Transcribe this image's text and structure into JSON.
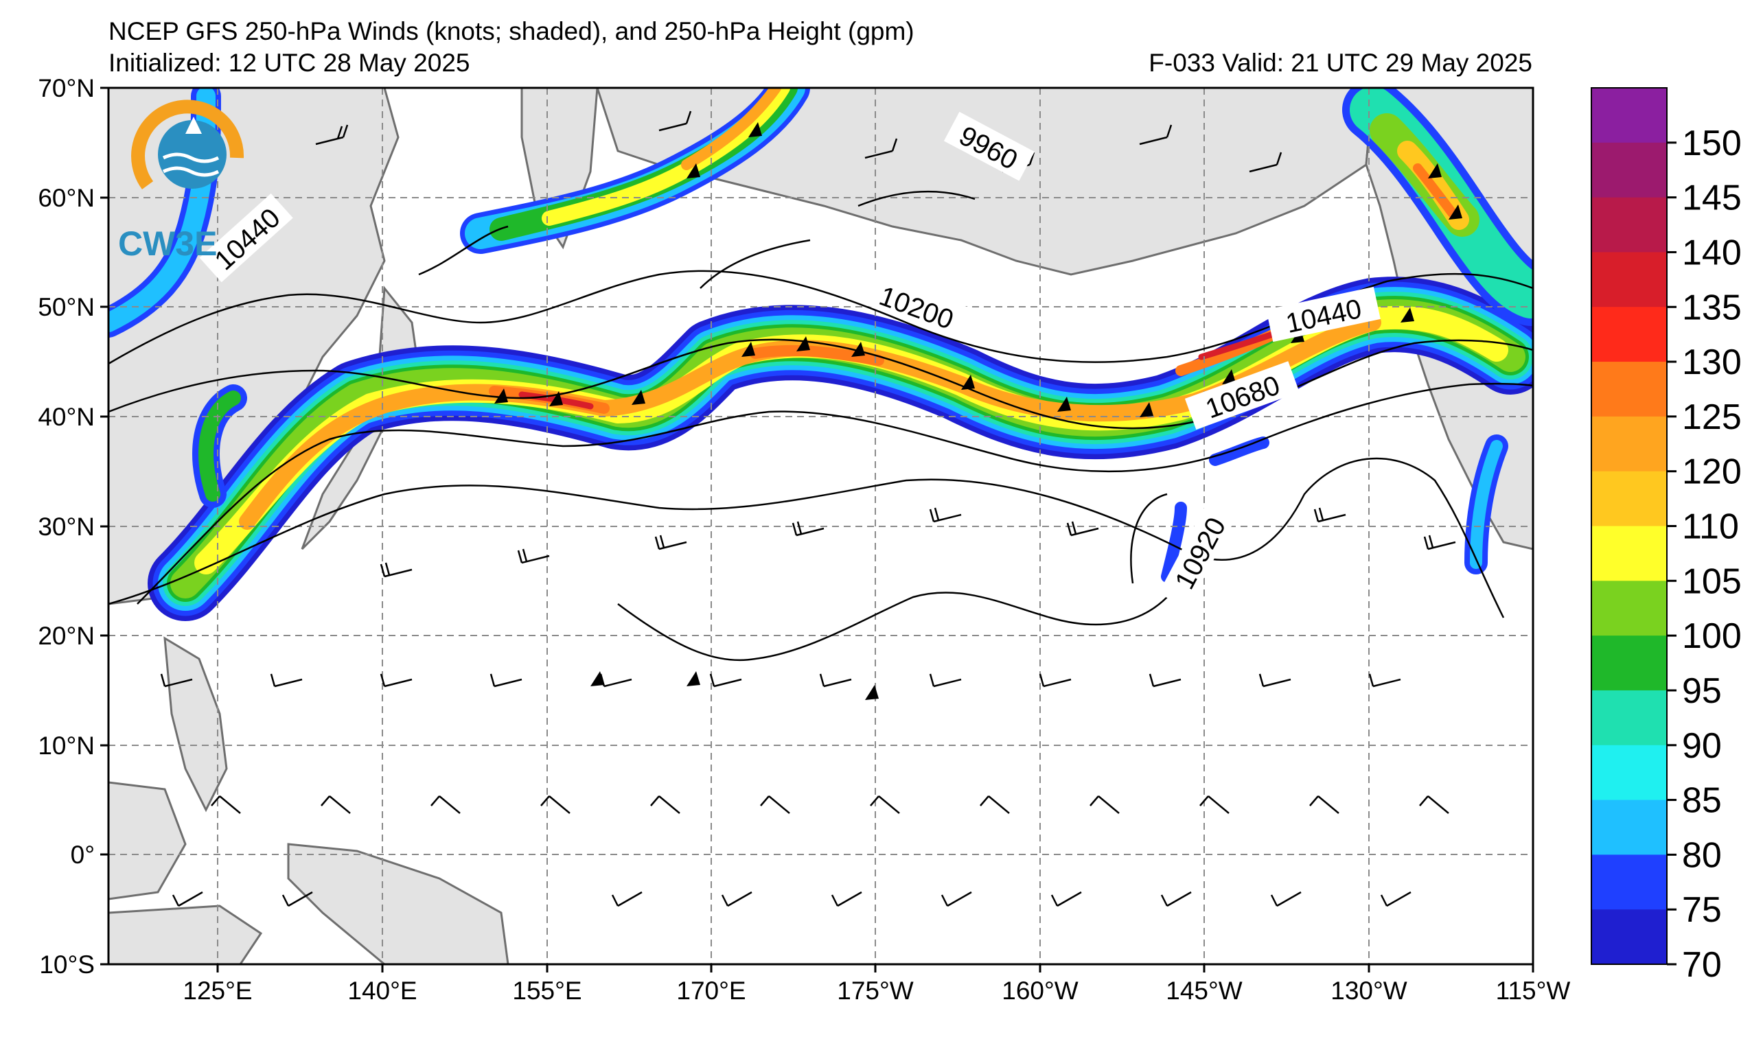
{
  "header": {
    "title": "NCEP GFS 250-hPa Winds (knots; shaded), and 250-hPa Height (gpm)",
    "initialized": "Initialized: 12 UTC 28 May 2025",
    "valid": "F-033  Valid: 21 UTC 29 May 2025"
  },
  "logo": {
    "text": "CW3E"
  },
  "axes": {
    "lat_labels": [
      "70°N",
      "60°N",
      "50°N",
      "40°N",
      "30°N",
      "20°N",
      "10°N",
      "0°",
      "10°S"
    ],
    "lon_labels": [
      "125°E",
      "140°E",
      "155°E",
      "170°E",
      "175°W",
      "160°W",
      "145°W",
      "130°W",
      "115°W"
    ]
  },
  "contour_labels": [
    "9960",
    "10440",
    "10200",
    "10440",
    "10680",
    "10920"
  ],
  "colorbar": {
    "labels": [
      "150",
      "145",
      "140",
      "135",
      "130",
      "125",
      "120",
      "110",
      "105",
      "100",
      "95",
      "90",
      "85",
      "80",
      "75",
      "70"
    ],
    "colors": [
      "#8b1fa0",
      "#9c1a6e",
      "#b81a4a",
      "#d81e2a",
      "#ff2a1a",
      "#ff7a1a",
      "#ffa51f",
      "#ffc81f",
      "#ffff2a",
      "#7ad21f",
      "#1fb82a",
      "#1fe0b0",
      "#1ff0f0",
      "#1fc0ff",
      "#1f40ff",
      "#1f1fd0"
    ]
  },
  "colors": {
    "land": "#e3e3e3",
    "coast": "#6e6e6e",
    "grid": "#8a8a8a",
    "contour": "#000000"
  }
}
